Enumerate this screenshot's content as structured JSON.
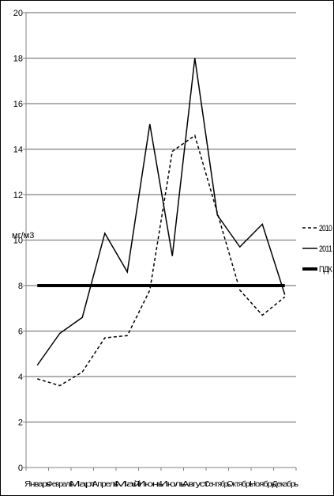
{
  "chart_data": {
    "type": "line",
    "title": "",
    "xlabel": "",
    "ylabel": "мг/м3",
    "ylim": [
      0,
      20
    ],
    "yticks": [
      0,
      2,
      4,
      6,
      8,
      10,
      12,
      14,
      16,
      18,
      20
    ],
    "grid": true,
    "legend_position": "right",
    "categories": [
      "Январь",
      "Февраль",
      "Март",
      "Апрель",
      "Май",
      "Июнь",
      "Июль",
      "Август",
      "Сентябрь",
      "Октябрь",
      "Ноябрь",
      "Декабрь"
    ],
    "series": [
      {
        "name": "2010",
        "style": "dashed",
        "color": "#000000",
        "values": [
          3.9,
          3.6,
          4.2,
          5.7,
          5.8,
          7.8,
          13.9,
          14.6,
          11.2,
          7.8,
          6.7,
          7.5
        ]
      },
      {
        "name": "2011",
        "style": "solid",
        "color": "#000000",
        "values": [
          4.5,
          5.9,
          6.6,
          10.3,
          8.6,
          15.1,
          9.3,
          18.0,
          11.1,
          9.7,
          10.7,
          7.6
        ]
      },
      {
        "name": "ПДК",
        "style": "thick",
        "color": "#000000",
        "values": [
          8,
          8,
          8,
          8,
          8,
          8,
          8,
          8,
          8,
          8,
          8,
          8
        ]
      }
    ]
  }
}
